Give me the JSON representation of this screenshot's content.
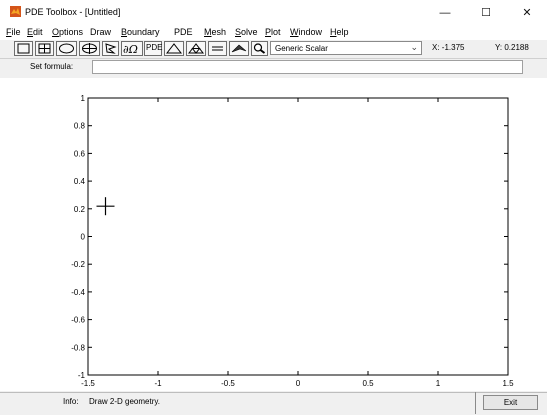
{
  "window": {
    "title": "PDE Toolbox - [Untitled]",
    "minimize": "—",
    "maximize": "☐",
    "close": "✕"
  },
  "menu": [
    {
      "label": "File",
      "u": "F",
      "rest": "ile"
    },
    {
      "label": "Edit",
      "u": "E",
      "rest": "dit"
    },
    {
      "label": "Options",
      "u": "O",
      "rest": "ptions"
    },
    {
      "label": "Draw",
      "u": "",
      "rest": "Draw"
    },
    {
      "label": "Boundary",
      "u": "B",
      "rest": "oundary"
    },
    {
      "label": "PDE",
      "u": "",
      "rest": "PDE"
    },
    {
      "label": "Mesh",
      "u": "M",
      "rest": "esh"
    },
    {
      "label": "Solve",
      "u": "S",
      "rest": "olve"
    },
    {
      "label": "Plot",
      "u": "P",
      "rest": "lot"
    },
    {
      "label": "Window",
      "u": "W",
      "rest": "indow"
    },
    {
      "label": "Help",
      "u": "H",
      "rest": "elp"
    }
  ],
  "toolbar": {
    "icons": [
      "rectangle-icon",
      "centered-rectangle-icon",
      "ellipse-icon",
      "centered-ellipse-icon",
      "polygon-icon",
      "boundary-mode-icon",
      "pde-button",
      "mesh-triangle-icon",
      "refine-mesh-icon",
      "equals-icon",
      "solve-pde-icon",
      "zoom-icon"
    ],
    "pde_label": "PDE",
    "scalar_select": "Generic Scalar",
    "x_coord": "X:  -1.375",
    "y_coord": "Y:  0.2188"
  },
  "formula": {
    "label": "Set formula:",
    "value": ""
  },
  "chart_data": {
    "type": "scatter",
    "title": "",
    "xlabel": "",
    "ylabel": "",
    "xlim": [
      -1.5,
      1.5
    ],
    "ylim": [
      -1,
      1
    ],
    "xticks": [
      "-1.5",
      "-1",
      "-0.5",
      "0",
      "0.5",
      "1",
      "1.5"
    ],
    "yticks": [
      "1",
      "0.8",
      "0.6",
      "0.4",
      "0.2",
      "0",
      "-0.2",
      "-0.4",
      "-0.6",
      "-0.8",
      "-1"
    ],
    "cursor": {
      "x": -1.375,
      "y": 0.2188
    },
    "grid": false
  },
  "status": {
    "info_label": "Info:",
    "info_text": "Draw 2-D geometry.",
    "exit_label": "Exit"
  }
}
